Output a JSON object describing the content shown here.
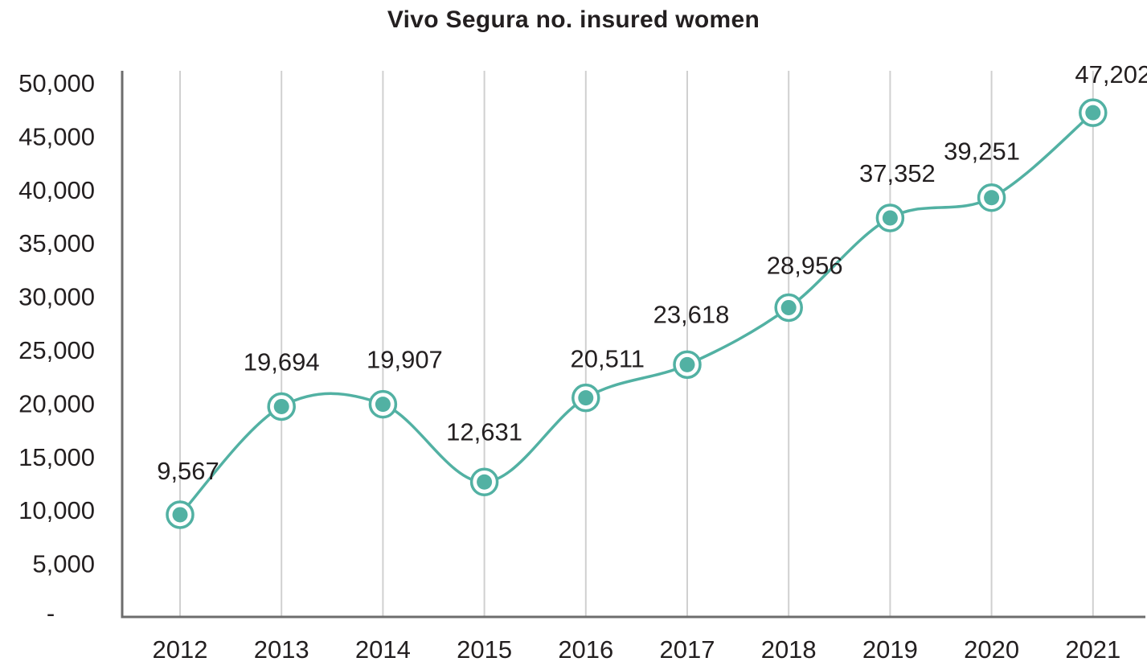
{
  "chart_data": {
    "type": "line",
    "title": "Vivo Segura no. insured women",
    "xlabel": "",
    "ylabel": "",
    "categories": [
      "2012",
      "2013",
      "2014",
      "2015",
      "2016",
      "2017",
      "2018",
      "2019",
      "2020",
      "2021"
    ],
    "series": [
      {
        "name": "Vivo Segura no. insured women",
        "values": [
          9567,
          19694,
          19907,
          12631,
          20511,
          23618,
          28956,
          37352,
          39251,
          47202
        ],
        "labels": [
          "9,567",
          "19,694",
          "19,907",
          "12,631",
          "20,511",
          "23,618",
          "28,956",
          "37,352",
          "39,251",
          "47,202"
        ],
        "color": "#52b1a3",
        "smooth": true,
        "marker": "ring-dot"
      }
    ],
    "ylim": [
      0,
      50000
    ],
    "yticks": [
      0,
      5000,
      10000,
      15000,
      20000,
      25000,
      30000,
      35000,
      40000,
      45000,
      50000
    ],
    "ytick_labels": [
      "-",
      "5,000",
      "10,000",
      "15,000",
      "20,000",
      "25,000",
      "30,000",
      "35,000",
      "40,000",
      "45,000",
      "50,000"
    ],
    "grid": {
      "vertical": true,
      "horizontal": false,
      "color": "#d0d0d0"
    },
    "axis_color": "#6d6d6d",
    "legend": null
  }
}
